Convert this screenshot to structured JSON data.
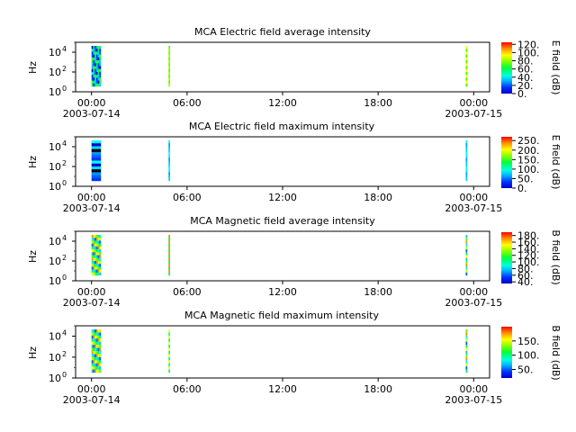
{
  "figure": {
    "x_ticks": [
      "00:00",
      "06:00",
      "12:00",
      "18:00",
      "00:00"
    ],
    "x_start_date": "2003-07-14",
    "x_end_date": "2003-07-15",
    "y_tick_exponents": [
      "0",
      "2",
      "4"
    ],
    "y_tick_base": "10"
  },
  "chart_data": [
    {
      "type": "heatmap",
      "title": "MCA  Electric field average intensity",
      "ylabel": "Hz",
      "yscale": "log",
      "ylim": [
        1,
        100000
      ],
      "xlim": [
        "2003-07-13T23:00",
        "2003-07-15T01:00"
      ],
      "colorbar_label": "E field (dB)",
      "colorbar_ticks": [
        "0.",
        "20.",
        "40.",
        "60.",
        "80.",
        "100.",
        "120."
      ],
      "colorbar_range": [
        0,
        125
      ],
      "colormap": "rainbow",
      "time_blocks": [
        {
          "start": "2003-07-14T00:00",
          "end": "2003-07-14T00:35",
          "dominant": "blue-green"
        },
        {
          "start": "2003-07-14T04:50",
          "end": "2003-07-14T04:55",
          "dominant": "green-yellow"
        },
        {
          "start": "2003-07-14T23:30",
          "end": "2003-07-14T23:34",
          "dominant": "green-yellow"
        }
      ]
    },
    {
      "type": "heatmap",
      "title": "MCA  Electric field maximum intensity",
      "ylabel": "Hz",
      "yscale": "log",
      "ylim": [
        1,
        100000
      ],
      "xlim": [
        "2003-07-13T23:00",
        "2003-07-15T01:00"
      ],
      "colorbar_label": "E field (dB)",
      "colorbar_ticks": [
        "0.",
        "50.",
        "100.",
        "150.",
        "200.",
        "250."
      ],
      "colorbar_range": [
        0,
        270
      ],
      "colormap": "rainbow",
      "time_blocks": [
        {
          "start": "2003-07-14T00:00",
          "end": "2003-07-14T00:35",
          "dominant": "blue-cyan"
        },
        {
          "start": "2003-07-14T04:50",
          "end": "2003-07-14T04:55",
          "dominant": "cyan"
        },
        {
          "start": "2003-07-14T23:30",
          "end": "2003-07-14T23:34",
          "dominant": "cyan"
        }
      ]
    },
    {
      "type": "heatmap",
      "title": "MCA  Magnetic field average intensity",
      "ylabel": "Hz",
      "yscale": "log",
      "ylim": [
        1,
        100000
      ],
      "xlim": [
        "2003-07-13T23:00",
        "2003-07-15T01:00"
      ],
      "colorbar_label": "B field (dB)",
      "colorbar_ticks": [
        "40.",
        "60.",
        "80.",
        "100.",
        "120.",
        "140.",
        "160.",
        "180."
      ],
      "colorbar_range": [
        35,
        190
      ],
      "colormap": "rainbow",
      "time_blocks": [
        {
          "start": "2003-07-14T00:00",
          "end": "2003-07-14T00:35",
          "dominant": "cyan-green-yellow"
        },
        {
          "start": "2003-07-14T04:50",
          "end": "2003-07-14T04:55",
          "dominant": "green-yellow-red"
        },
        {
          "start": "2003-07-14T23:30",
          "end": "2003-07-14T23:34",
          "dominant": "cyan-green-yellow"
        }
      ]
    },
    {
      "type": "heatmap",
      "title": "MCA  Magnetic field maximum intensity",
      "ylabel": "Hz",
      "yscale": "log",
      "ylim": [
        1,
        100000
      ],
      "xlim": [
        "2003-07-13T23:00",
        "2003-07-15T01:00"
      ],
      "colorbar_label": "B field (dB)",
      "colorbar_ticks": [
        "50.",
        "100.",
        "150."
      ],
      "colorbar_range": [
        20,
        200
      ],
      "colormap": "rainbow",
      "time_blocks": [
        {
          "start": "2003-07-14T00:00",
          "end": "2003-07-14T00:35",
          "dominant": "cyan-green-yellow"
        },
        {
          "start": "2003-07-14T04:50",
          "end": "2003-07-14T04:55",
          "dominant": "green-yellow-red"
        },
        {
          "start": "2003-07-14T23:30",
          "end": "2003-07-14T23:34",
          "dominant": "cyan-green-yellow"
        }
      ]
    }
  ]
}
